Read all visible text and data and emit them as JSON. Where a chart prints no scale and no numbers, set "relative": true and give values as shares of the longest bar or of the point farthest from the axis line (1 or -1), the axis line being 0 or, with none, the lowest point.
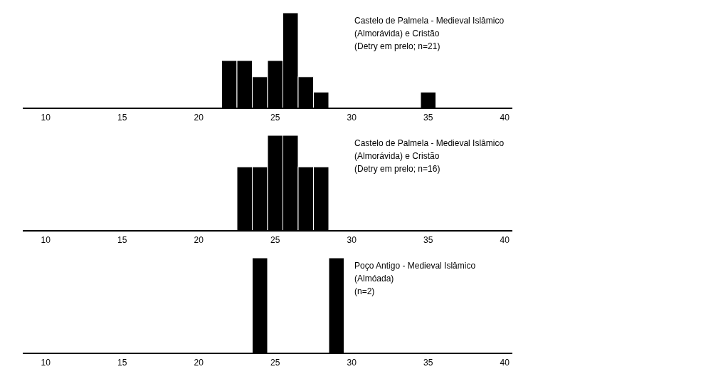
{
  "chart_data": [
    {
      "type": "bar",
      "title": "Castelo de Palmela - Medieval Islâmico (Almorávida) e Cristão",
      "subtitle": "(Detry em prelo; n=21)",
      "x": [
        22,
        23,
        24,
        25,
        26,
        27,
        28,
        35
      ],
      "values": [
        0.5,
        0.5,
        0.33,
        0.5,
        1,
        0.33,
        0.17,
        0.17
      ],
      "color": "#000000",
      "relative": true,
      "xlim": [
        8.5,
        40.5
      ],
      "xticks": [
        10,
        15,
        20,
        25,
        30,
        35,
        40
      ]
    },
    {
      "type": "bar",
      "title": "Castelo de Palmela - Medieval Islâmico (Almorávida) e Cristão",
      "subtitle": "(Detry em prelo; n=16)",
      "x": [
        23,
        24,
        25,
        26,
        27,
        28
      ],
      "values": [
        0.67,
        0.67,
        1,
        1,
        0.67,
        0.67
      ],
      "color": "#000000",
      "relative": true,
      "xlim": [
        8.5,
        40.5
      ],
      "xticks": [
        10,
        15,
        20,
        25,
        30,
        35,
        40
      ]
    },
    {
      "type": "bar",
      "title": "Poço Antigo - Medieval Islâmico (Almóada)",
      "subtitle": "(n=2)",
      "x": [
        24,
        29
      ],
      "values": [
        1,
        1
      ],
      "color": "#000000",
      "relative": true,
      "xlim": [
        8.5,
        40.5
      ],
      "xticks": [
        10,
        15,
        20,
        25,
        30,
        35,
        40
      ]
    }
  ]
}
